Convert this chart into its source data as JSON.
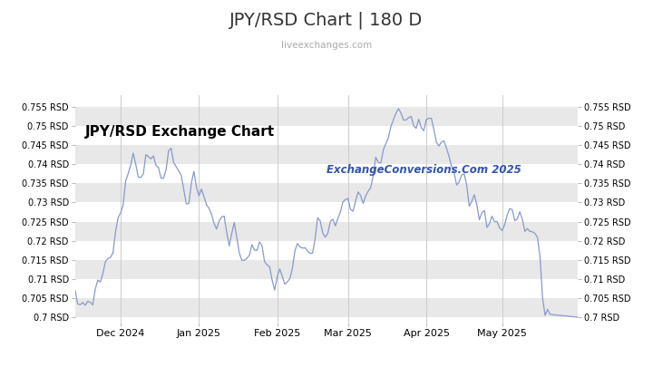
{
  "title": "JPY/RSD Chart | 180 D",
  "subtitle": "liveexchanges.com",
  "watermark": "ExchangeConversions.Com 2025",
  "chart_label": "JPY/RSD Exchange Chart",
  "ylim": [
    0.6985,
    0.758
  ],
  "yticks": [
    0.7,
    0.705,
    0.71,
    0.715,
    0.72,
    0.725,
    0.73,
    0.735,
    0.74,
    0.745,
    0.75,
    0.755
  ],
  "line_color": "#8899cc",
  "background_color": "#ffffff",
  "stripe_color": "#e8e8e8",
  "title_color": "#333333",
  "subtitle_color": "#aaaaaa",
  "chart_label_color": "#000000",
  "watermark_color": "#3355aa",
  "fig_width": 7.2,
  "fig_height": 4.05,
  "dpi": 100
}
